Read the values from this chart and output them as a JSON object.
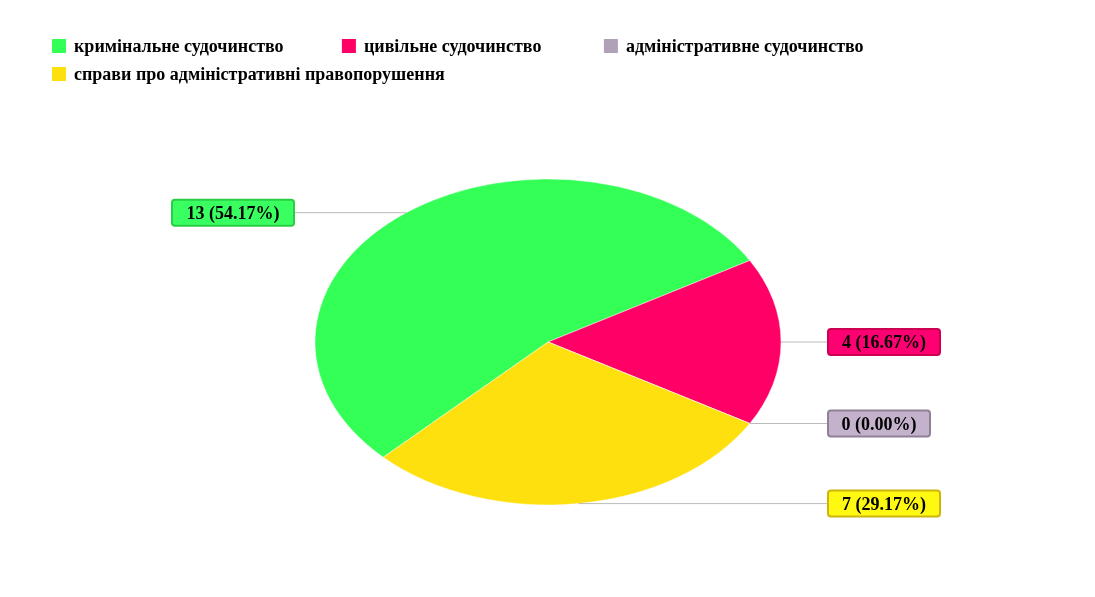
{
  "chart_data": {
    "type": "pie",
    "categories": [
      "кримінальне судочинство",
      "цивільне судочинство",
      "адміністративне судочинство",
      "справи про адміністративні правопорушення"
    ],
    "values": [
      13,
      4,
      0,
      7
    ],
    "colors": [
      "#33ff57",
      "#ff0066",
      "#b0a0b8",
      "#ffe00f"
    ],
    "value_labels": [
      "13 (54.17%)",
      "4 (16.67%)",
      "0 (0.00%)",
      "7 (29.17%)"
    ],
    "legend": "top left"
  }
}
